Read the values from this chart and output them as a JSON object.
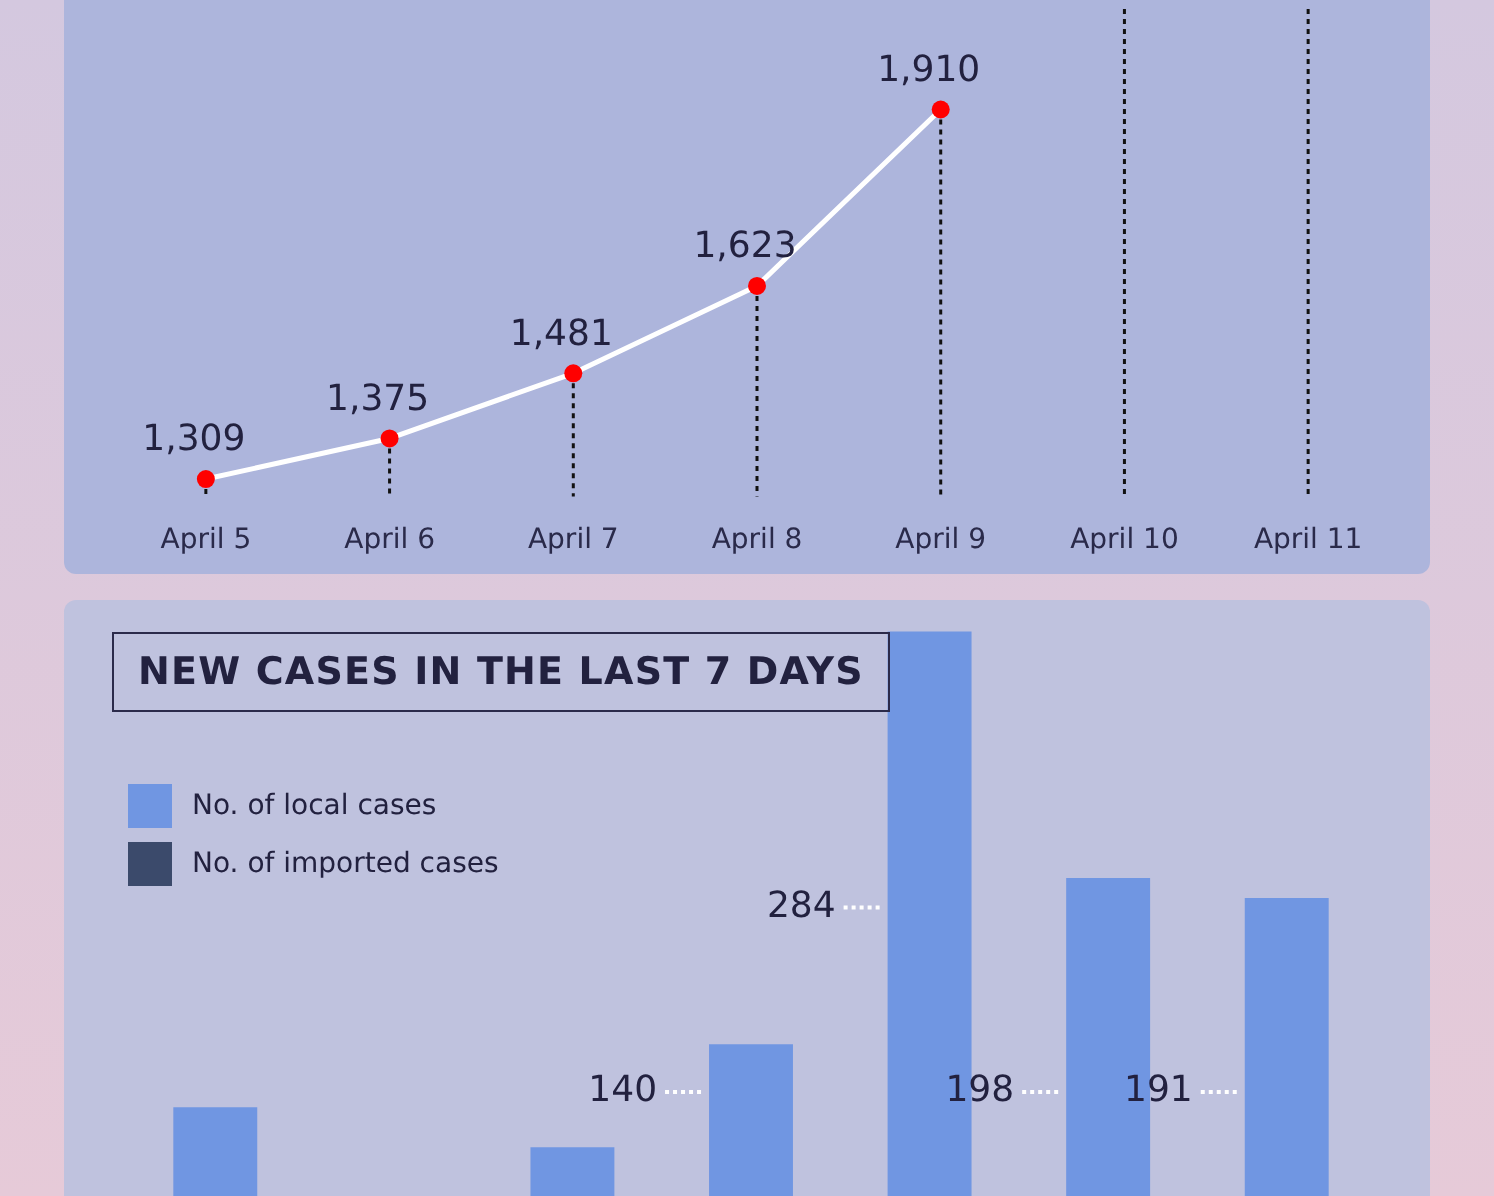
{
  "chart_data": [
    {
      "type": "line",
      "categories": [
        "April 5",
        "April 6",
        "April 7",
        "April 8",
        "April 9",
        "April 10",
        "April 11"
      ],
      "series": [
        {
          "color": "#ffffff",
          "values": [
            1309,
            1375,
            1481,
            1623,
            1910,
            null,
            null
          ],
          "value_labels": [
            "1,309",
            "1,375",
            "1,481",
            "1,623",
            "1,910",
            null,
            null
          ]
        }
      ],
      "tick_labels": "x",
      "marker": "circle",
      "grid": "x",
      "legend": false
    },
    {
      "type": "bar",
      "title": "NEW CASES IN THE LAST 7 DAYS",
      "categories": [
        null,
        null,
        null,
        null,
        null,
        null,
        null
      ],
      "series": [
        {
          "name": "No. of local cases",
          "color": "#7096e2",
          "values": [
            118,
            null,
            104,
            140,
            284,
            198,
            191
          ],
          "value_labels": [
            null,
            null,
            null,
            "140",
            "284",
            "198",
            "191"
          ]
        },
        {
          "name": "No. of imported cases",
          "color": "#3b4a6b",
          "values": [
            null,
            null,
            null,
            null,
            null,
            null,
            null
          ]
        }
      ],
      "ylim": [
        87,
        295
      ],
      "tick_labels": false,
      "legend": "top left"
    }
  ]
}
